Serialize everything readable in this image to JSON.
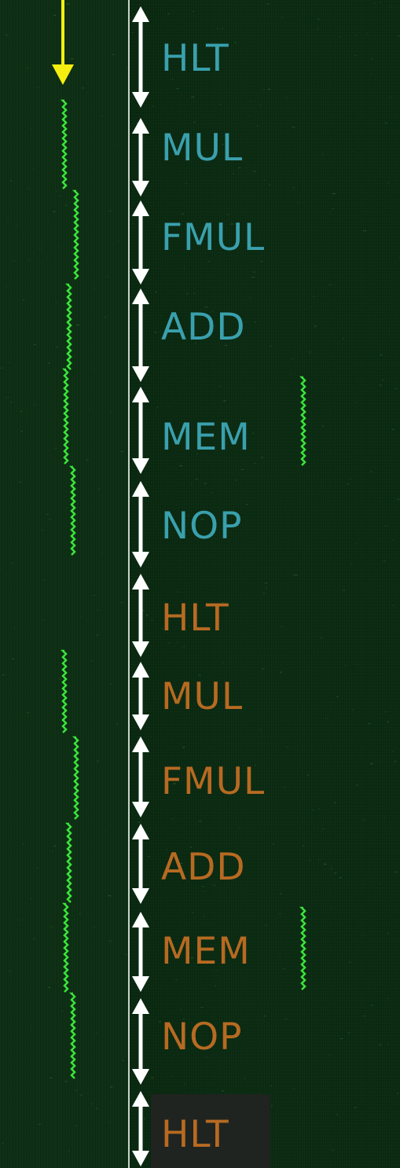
{
  "colors": {
    "background": "#0a2811",
    "trace_green": "#3be33b",
    "marker_yellow": "#f4ef10",
    "arrow_white": "#ffffff",
    "label_first_cycle": "#3aa0ad",
    "label_second_cycle": "#b76a22"
  },
  "marker": {
    "icon": "down-arrow-icon",
    "color": "yellow"
  },
  "segments": [
    {
      "label": "HLT",
      "cycle": 1
    },
    {
      "label": "MUL",
      "cycle": 1
    },
    {
      "label": "FMUL",
      "cycle": 1
    },
    {
      "label": "ADD",
      "cycle": 1
    },
    {
      "label": "MEM",
      "cycle": 1
    },
    {
      "label": "NOP",
      "cycle": 1
    },
    {
      "label": "HLT",
      "cycle": 2
    },
    {
      "label": "MUL",
      "cycle": 2
    },
    {
      "label": "FMUL",
      "cycle": 2
    },
    {
      "label": "ADD",
      "cycle": 2
    },
    {
      "label": "MEM",
      "cycle": 2
    },
    {
      "label": "NOP",
      "cycle": 2
    },
    {
      "label": "HLT",
      "cycle": 3
    }
  ]
}
